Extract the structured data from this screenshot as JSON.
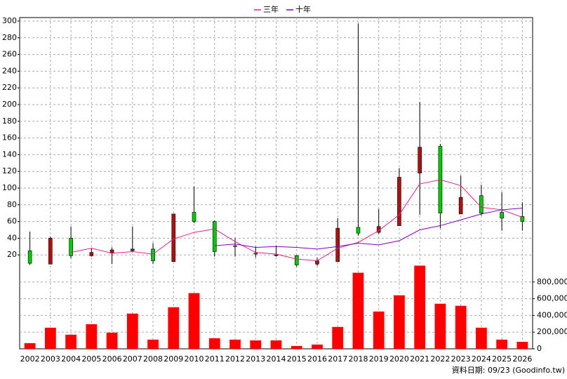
{
  "chart_data": {
    "type": "candlestick",
    "legend_position": "top",
    "categories": [
      "2002",
      "2003",
      "2004",
      "2005",
      "2006",
      "2007",
      "2008",
      "2009",
      "2010",
      "2011",
      "2012",
      "2013",
      "2014",
      "2015",
      "2016",
      "2017",
      "2018",
      "2019",
      "2020",
      "2021",
      "2022",
      "2023",
      "2024",
      "2025",
      "2026"
    ],
    "open": [
      25,
      9,
      40,
      19,
      22,
      25,
      27,
      12,
      71,
      60,
      31,
      22,
      20,
      19,
      9,
      12,
      53,
      47,
      55,
      118,
      150,
      69,
      91,
      71,
      66
    ],
    "high": [
      48,
      42,
      54,
      28,
      29,
      54,
      34,
      69,
      102,
      61,
      40,
      30,
      31,
      20,
      17,
      64,
      297,
      75,
      124,
      203,
      153,
      115,
      104,
      95,
      83
    ],
    "low": [
      8,
      9,
      16,
      18,
      9,
      23,
      9,
      12,
      58,
      18,
      18,
      17,
      18,
      6,
      7,
      12,
      43,
      45,
      55,
      68,
      52,
      69,
      67,
      49,
      49
    ],
    "close": [
      10,
      40,
      19,
      23,
      26,
      27,
      13,
      69,
      60,
      24,
      30,
      21,
      20,
      8,
      13,
      52,
      46,
      54,
      113,
      149,
      70,
      89,
      70,
      64,
      60
    ],
    "up_color": "#b01010",
    "down_color": "#00cc00",
    "series": [
      {
        "name": "三年",
        "color": "#e0208a",
        "values": [
          null,
          null,
          23,
          28,
          22,
          24,
          21,
          39,
          47,
          51,
          36,
          23,
          21,
          15,
          13,
          28,
          35,
          49,
          68,
          105,
          110,
          103,
          77,
          74,
          65
        ]
      },
      {
        "name": "十年",
        "color": "#8000c0",
        "values": [
          null,
          null,
          null,
          null,
          null,
          null,
          null,
          null,
          null,
          31,
          33,
          29,
          30,
          29,
          27,
          30,
          34,
          32,
          37,
          50,
          55,
          62,
          69,
          74,
          76
        ]
      }
    ],
    "volume": {
      "color": "#ff0000",
      "axis": "y2",
      "values": [
        68000,
        253000,
        169000,
        295000,
        194000,
        422000,
        110000,
        498000,
        667000,
        127000,
        110000,
        101000,
        101000,
        34000,
        51000,
        262000,
        911000,
        447000,
        641000,
        996000,
        540000,
        515000,
        253000,
        110000,
        84000
      ]
    },
    "ylim": [
      0,
      300
    ],
    "yticks": [
      20,
      40,
      60,
      80,
      100,
      120,
      140,
      160,
      180,
      200,
      220,
      240,
      260,
      280,
      300
    ],
    "y2lim": [
      0,
      1000000
    ],
    "y2ticks": [
      0,
      {
        "value": 200000,
        "label": "200,000"
      },
      {
        "value": 400000,
        "label": "400,000"
      },
      {
        "value": 600000,
        "label": "600,000"
      },
      {
        "value": 800000,
        "label": "800,000"
      }
    ],
    "grid": true,
    "footer": "資料日期: 09/23  (Goodinfo.tw)"
  }
}
